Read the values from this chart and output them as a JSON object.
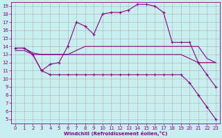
{
  "background_color": "#c8eef0",
  "grid_color": "#b0b0b0",
  "line_color": "#880088",
  "marker": "+",
  "xlabel": "Windchill (Refroidissement éolien,°C)",
  "xlim": [
    -0.5,
    23.5
  ],
  "ylim": [
    4.5,
    19.5
  ],
  "xticks": [
    0,
    1,
    2,
    3,
    4,
    5,
    6,
    7,
    8,
    9,
    10,
    11,
    12,
    13,
    14,
    15,
    16,
    17,
    18,
    19,
    20,
    21,
    22,
    23
  ],
  "yticks": [
    5,
    6,
    7,
    8,
    9,
    10,
    11,
    12,
    13,
    14,
    15,
    16,
    17,
    18,
    19
  ],
  "lines": [
    {
      "x": [
        0,
        1,
        2,
        3,
        4,
        5,
        6,
        7,
        8,
        9,
        10,
        11,
        12,
        13,
        14,
        15,
        16,
        17,
        18,
        19,
        20,
        21,
        22,
        23
      ],
      "y": [
        13.8,
        13.8,
        13.0,
        11.0,
        11.8,
        12.0,
        14.0,
        17.0,
        16.5,
        15.5,
        18.0,
        18.2,
        18.2,
        18.5,
        19.2,
        19.2,
        19.0,
        18.2,
        14.5,
        14.5,
        14.5,
        12.0,
        10.5,
        9.0
      ],
      "with_markers": true
    },
    {
      "x": [
        0,
        1,
        2,
        3,
        4,
        5,
        6,
        7,
        8,
        9,
        10,
        11,
        12,
        13,
        14,
        15,
        16,
        17,
        18,
        19,
        20,
        21,
        22,
        23
      ],
      "y": [
        13.8,
        13.8,
        13.2,
        13.0,
        13.0,
        13.0,
        13.0,
        13.5,
        14.0,
        14.0,
        14.0,
        14.0,
        14.0,
        14.0,
        14.0,
        14.0,
        14.0,
        14.0,
        14.0,
        14.0,
        14.0,
        14.0,
        12.5,
        12.0
      ],
      "with_markers": false
    },
    {
      "x": [
        0,
        1,
        2,
        3,
        4,
        5,
        6,
        7,
        8,
        9,
        10,
        11,
        12,
        13,
        14,
        15,
        16,
        17,
        18,
        19,
        20,
        21,
        22,
        23
      ],
      "y": [
        13.5,
        13.5,
        13.0,
        13.0,
        13.0,
        13.0,
        13.0,
        13.0,
        13.0,
        13.0,
        13.0,
        13.0,
        13.0,
        13.0,
        13.0,
        13.0,
        13.0,
        13.0,
        13.0,
        13.0,
        12.5,
        12.0,
        12.0,
        12.0
      ],
      "with_markers": false
    },
    {
      "x": [
        2,
        3,
        4,
        5,
        6,
        7,
        8,
        9,
        10,
        11,
        12,
        13,
        14,
        15,
        16,
        17,
        18,
        19,
        20,
        21,
        22,
        23
      ],
      "y": [
        13.0,
        11.0,
        10.5,
        10.5,
        10.5,
        10.5,
        10.5,
        10.5,
        10.5,
        10.5,
        10.5,
        10.5,
        10.5,
        10.5,
        10.5,
        10.5,
        10.5,
        10.5,
        9.5,
        8.0,
        6.5,
        5.0
      ],
      "with_markers": true
    }
  ]
}
